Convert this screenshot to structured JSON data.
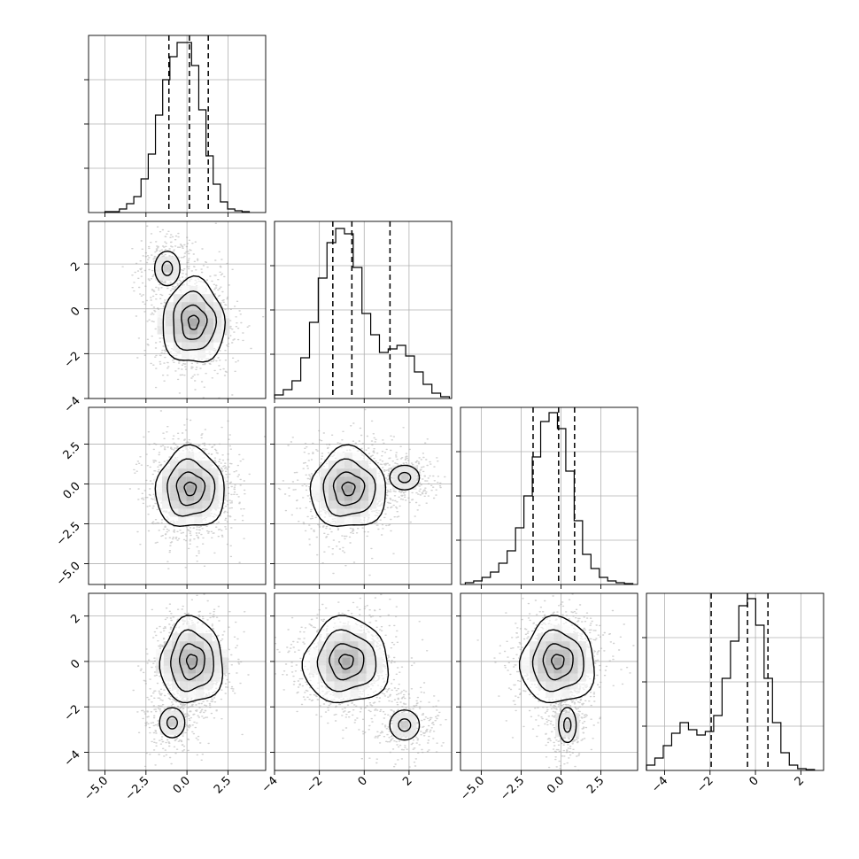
{
  "chart_data": {
    "type": "corner",
    "grid": true,
    "dimensions": 4,
    "axis_ranges": [
      [
        -6.0,
        4.8
      ],
      [
        -4.0,
        3.9
      ],
      [
        -6.3,
        4.8
      ],
      [
        -4.8,
        3.0
      ]
    ],
    "ticks": [
      [
        -5.0,
        -2.5,
        0.0,
        2.5
      ],
      [
        -4,
        -2,
        0,
        2
      ],
      [
        -5.0,
        -2.5,
        0.0,
        2.5
      ],
      [
        -4,
        -2,
        0,
        2
      ]
    ],
    "tick_labels": [
      [
        "−5.0",
        "−2.5",
        "0.0",
        "2.5"
      ],
      [
        "−4",
        "−2",
        "0",
        "2"
      ],
      [
        "−5.0",
        "−2.5",
        "0.0",
        "2.5"
      ],
      [
        "−4",
        "−2",
        "0",
        "2"
      ]
    ],
    "quantiles": [
      [
        -1.1,
        0.15,
        1.3
      ],
      [
        -1.4,
        -0.55,
        1.15
      ],
      [
        -1.75,
        -0.15,
        0.85
      ],
      [
        -1.95,
        -0.35,
        0.55
      ]
    ],
    "histograms": [
      {
        "edges_range": [
          -5.0,
          3.8
        ],
        "bins": 20,
        "counts": [
          0.005,
          0.005,
          0.02,
          0.05,
          0.09,
          0.19,
          0.33,
          0.55,
          0.75,
          0.88,
          0.96,
          0.96,
          0.83,
          0.58,
          0.32,
          0.16,
          0.06,
          0.02,
          0.01,
          0.005
        ]
      },
      {
        "edges_range": [
          -4.0,
          3.8
        ],
        "bins": 20,
        "counts": [
          0.02,
          0.05,
          0.1,
          0.23,
          0.43,
          0.68,
          0.88,
          0.96,
          0.93,
          0.74,
          0.48,
          0.36,
          0.26,
          0.28,
          0.3,
          0.24,
          0.15,
          0.08,
          0.03,
          0.01
        ]
      },
      {
        "edges_range": [
          -6.0,
          4.5
        ],
        "bins": 20,
        "counts": [
          0.01,
          0.02,
          0.04,
          0.07,
          0.12,
          0.19,
          0.32,
          0.5,
          0.72,
          0.92,
          0.97,
          0.88,
          0.64,
          0.36,
          0.17,
          0.09,
          0.04,
          0.02,
          0.01,
          0.005
        ]
      },
      {
        "edges_range": [
          -4.8,
          2.6
        ],
        "bins": 20,
        "counts": [
          0.03,
          0.07,
          0.14,
          0.21,
          0.27,
          0.23,
          0.2,
          0.22,
          0.31,
          0.52,
          0.73,
          0.93,
          0.97,
          0.82,
          0.52,
          0.27,
          0.1,
          0.03,
          0.01,
          0.005
        ]
      }
    ],
    "scatter_pairs": [
      {
        "row": 1,
        "col": 0,
        "components": [
          {
            "mx": 0.4,
            "my": -0.6,
            "sx": 0.9,
            "sy": 0.9,
            "w": 0.8
          },
          {
            "mx": -1.2,
            "my": 1.8,
            "sx": 0.7,
            "sy": 0.7,
            "w": 0.2
          }
        ]
      },
      {
        "row": 2,
        "col": 0,
        "components": [
          {
            "mx": 0.2,
            "my": -0.3,
            "sx": 1.0,
            "sy": 1.2,
            "w": 1.0
          }
        ]
      },
      {
        "row": 2,
        "col": 1,
        "components": [
          {
            "mx": -0.7,
            "my": -0.3,
            "sx": 0.8,
            "sy": 1.2,
            "w": 0.8
          },
          {
            "mx": 1.8,
            "my": 0.4,
            "sx": 0.6,
            "sy": 0.7,
            "w": 0.2
          }
        ]
      },
      {
        "row": 3,
        "col": 0,
        "components": [
          {
            "mx": 0.3,
            "my": 0.0,
            "sx": 0.9,
            "sy": 0.9,
            "w": 0.8
          },
          {
            "mx": -0.9,
            "my": -2.7,
            "sx": 0.7,
            "sy": 0.6,
            "w": 0.2
          }
        ]
      },
      {
        "row": 3,
        "col": 1,
        "components": [
          {
            "mx": -0.8,
            "my": 0.0,
            "sx": 0.9,
            "sy": 0.9,
            "w": 0.8
          },
          {
            "mx": 1.8,
            "my": -2.8,
            "sx": 0.6,
            "sy": 0.6,
            "w": 0.2
          }
        ]
      },
      {
        "row": 3,
        "col": 2,
        "components": [
          {
            "mx": -0.2,
            "my": 0.0,
            "sx": 1.1,
            "sy": 0.9,
            "w": 0.8
          },
          {
            "mx": 0.4,
            "my": -2.8,
            "sx": 0.5,
            "sy": 0.7,
            "w": 0.2
          }
        ]
      }
    ]
  }
}
